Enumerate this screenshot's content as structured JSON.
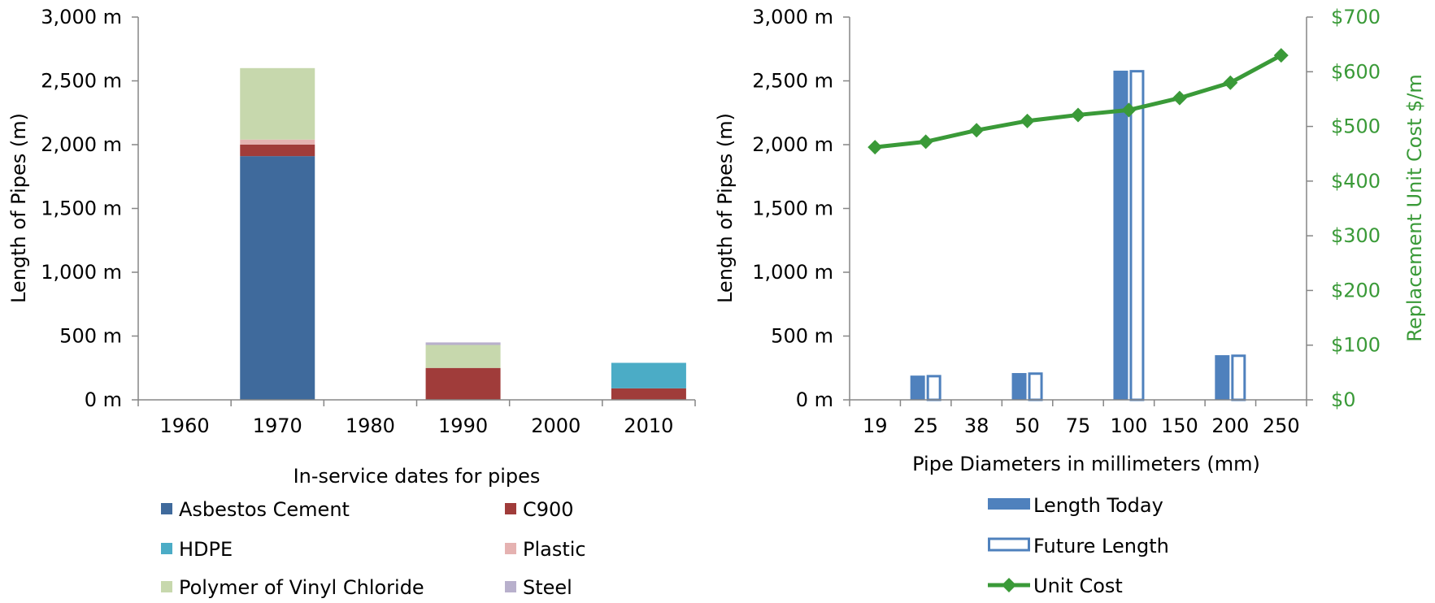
{
  "chart_data": [
    {
      "type": "bar",
      "stacked": true,
      "title": "",
      "xlabel": "In-service dates for pipes",
      "ylabel": "Length of Pipes (m)",
      "ylim": [
        0,
        3000
      ],
      "y_ticks": [
        "0 m",
        "500 m",
        "1,000 m",
        "1,500 m",
        "2,000 m",
        "2,500 m",
        "3,000 m"
      ],
      "categories": [
        "1960",
        "1970",
        "1980",
        "1990",
        "2000",
        "2010"
      ],
      "series": [
        {
          "name": "Asbestos Cement",
          "color": "#3f6a9c",
          "values": [
            0,
            1910,
            0,
            0,
            0,
            0
          ]
        },
        {
          "name": "C900",
          "color": "#a03c3a",
          "values": [
            0,
            90,
            0,
            250,
            0,
            90
          ]
        },
        {
          "name": "HDPE",
          "color": "#4bacc6",
          "values": [
            0,
            0,
            0,
            0,
            0,
            200
          ]
        },
        {
          "name": "Plastic",
          "color": "#e5b2b1",
          "values": [
            0,
            40,
            0,
            0,
            0,
            0
          ]
        },
        {
          "name": "Polymer of Vinyl Chloride",
          "color": "#c7d8ad",
          "values": [
            0,
            560,
            0,
            180,
            0,
            0
          ]
        },
        {
          "name": "Steel",
          "color": "#b8b0cc",
          "values": [
            0,
            0,
            0,
            20,
            0,
            0
          ]
        }
      ],
      "legend_position": "bottom"
    },
    {
      "type": "bar+line",
      "title": "",
      "xlabel": "Pipe Diameters in millimeters (mm)",
      "ylabel": "Length of Pipes (m)",
      "y2label": "Replacement Unit Cost $/m",
      "ylim": [
        0,
        3000
      ],
      "y2lim": [
        0,
        700
      ],
      "y_ticks": [
        "0 m",
        "500 m",
        "1,000 m",
        "1,500 m",
        "2,000 m",
        "2,500 m",
        "3,000 m"
      ],
      "y2_ticks": [
        "$0",
        "$100",
        "$200",
        "$300",
        "$400",
        "$500",
        "$600",
        "$700"
      ],
      "categories": [
        "19",
        "25",
        "38",
        "50",
        "75",
        "100",
        "150",
        "200",
        "250"
      ],
      "series": [
        {
          "name": "Length Today",
          "kind": "bar",
          "color": "#4f81bd",
          "values": [
            0,
            190,
            0,
            210,
            0,
            2580,
            0,
            350,
            0
          ]
        },
        {
          "name": "Future Length",
          "kind": "bar-outline",
          "color": "#4f81bd",
          "values": [
            0,
            195,
            0,
            215,
            0,
            2585,
            0,
            355,
            0
          ]
        },
        {
          "name": "Unit Cost",
          "kind": "line",
          "axis": "y2",
          "color": "#3a9a38",
          "values": [
            462,
            472,
            493,
            510,
            521,
            530,
            552,
            580,
            630
          ]
        }
      ],
      "legend_position": "bottom"
    }
  ]
}
